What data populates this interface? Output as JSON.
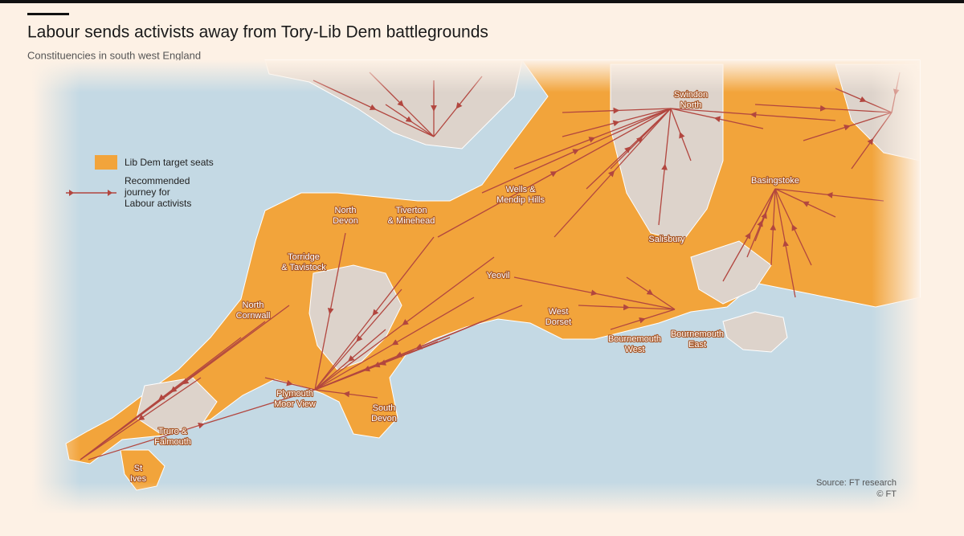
{
  "header": {
    "title": "Labour sends activists away from Tory-Lib Dem battlegrounds",
    "subtitle": "Constituencies in south west England"
  },
  "legend": {
    "items": [
      {
        "lines": [
          "Lib Dem target seats"
        ]
      },
      {
        "lines": [
          "Recommended",
          "journey for",
          "Labour activists"
        ]
      }
    ]
  },
  "places": [
    {
      "lines": [
        "Swindon",
        "North"
      ]
    },
    {
      "lines": [
        "Basingstoke"
      ]
    },
    {
      "lines": [
        "Wells &",
        "Mendip Hills"
      ]
    },
    {
      "lines": [
        "North",
        "Devon"
      ]
    },
    {
      "lines": [
        "Tiverton",
        "& Minehead"
      ]
    },
    {
      "lines": [
        "Torridge",
        "& Tavistock"
      ]
    },
    {
      "lines": [
        "North",
        "Cornwall"
      ]
    },
    {
      "lines": [
        "Yeovil"
      ]
    },
    {
      "lines": [
        "Salisbury"
      ]
    },
    {
      "lines": [
        "West",
        "Dorset"
      ]
    },
    {
      "lines": [
        "Bournemouth",
        "West"
      ]
    },
    {
      "lines": [
        "Bournemouth",
        "East"
      ]
    },
    {
      "lines": [
        "Plymouth",
        "Moor View"
      ]
    },
    {
      "lines": [
        "South",
        "Devon"
      ]
    },
    {
      "lines": [
        "Truro &",
        "Falmouth"
      ]
    },
    {
      "lines": [
        "St",
        "Ives"
      ]
    }
  ],
  "footer": {
    "source": "Source: FT research",
    "copyright": "© FT"
  }
}
